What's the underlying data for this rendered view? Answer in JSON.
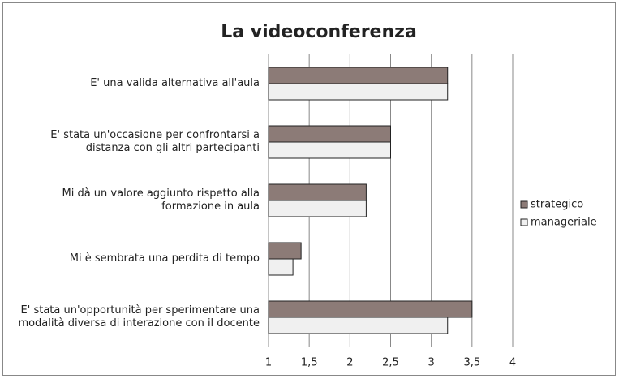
{
  "chart_data": {
    "type": "bar",
    "orientation": "horizontal",
    "title": "La videoconferenza",
    "categories": [
      "E' una valida alternativa all'aula",
      "E' stata un'occasione per confrontarsi a distanza con gli altri partecipanti",
      "Mi dà un valore aggiunto rispetto alla formazione in aula",
      "Mi è sembrata una perdita di tempo",
      "E' stata un'opportunità per sperimentare una modalità diversa di interazione con il docente"
    ],
    "series": [
      {
        "name": "strategico",
        "color": "#8c7b77",
        "values": [
          3.2,
          2.5,
          2.2,
          1.4,
          3.5
        ]
      },
      {
        "name": "manageriale",
        "color": "#f0f0f0",
        "values": [
          3.2,
          2.5,
          2.2,
          1.3,
          3.2
        ]
      }
    ],
    "xlim": [
      1,
      4
    ],
    "xticks": [
      1,
      {
        "value": 1.5,
        "label": "1,5"
      },
      2,
      {
        "value": 2.5,
        "label": "2,5"
      },
      3,
      {
        "value": 3.5,
        "label": "3,5"
      },
      4
    ],
    "grid": true,
    "legend": "right"
  }
}
